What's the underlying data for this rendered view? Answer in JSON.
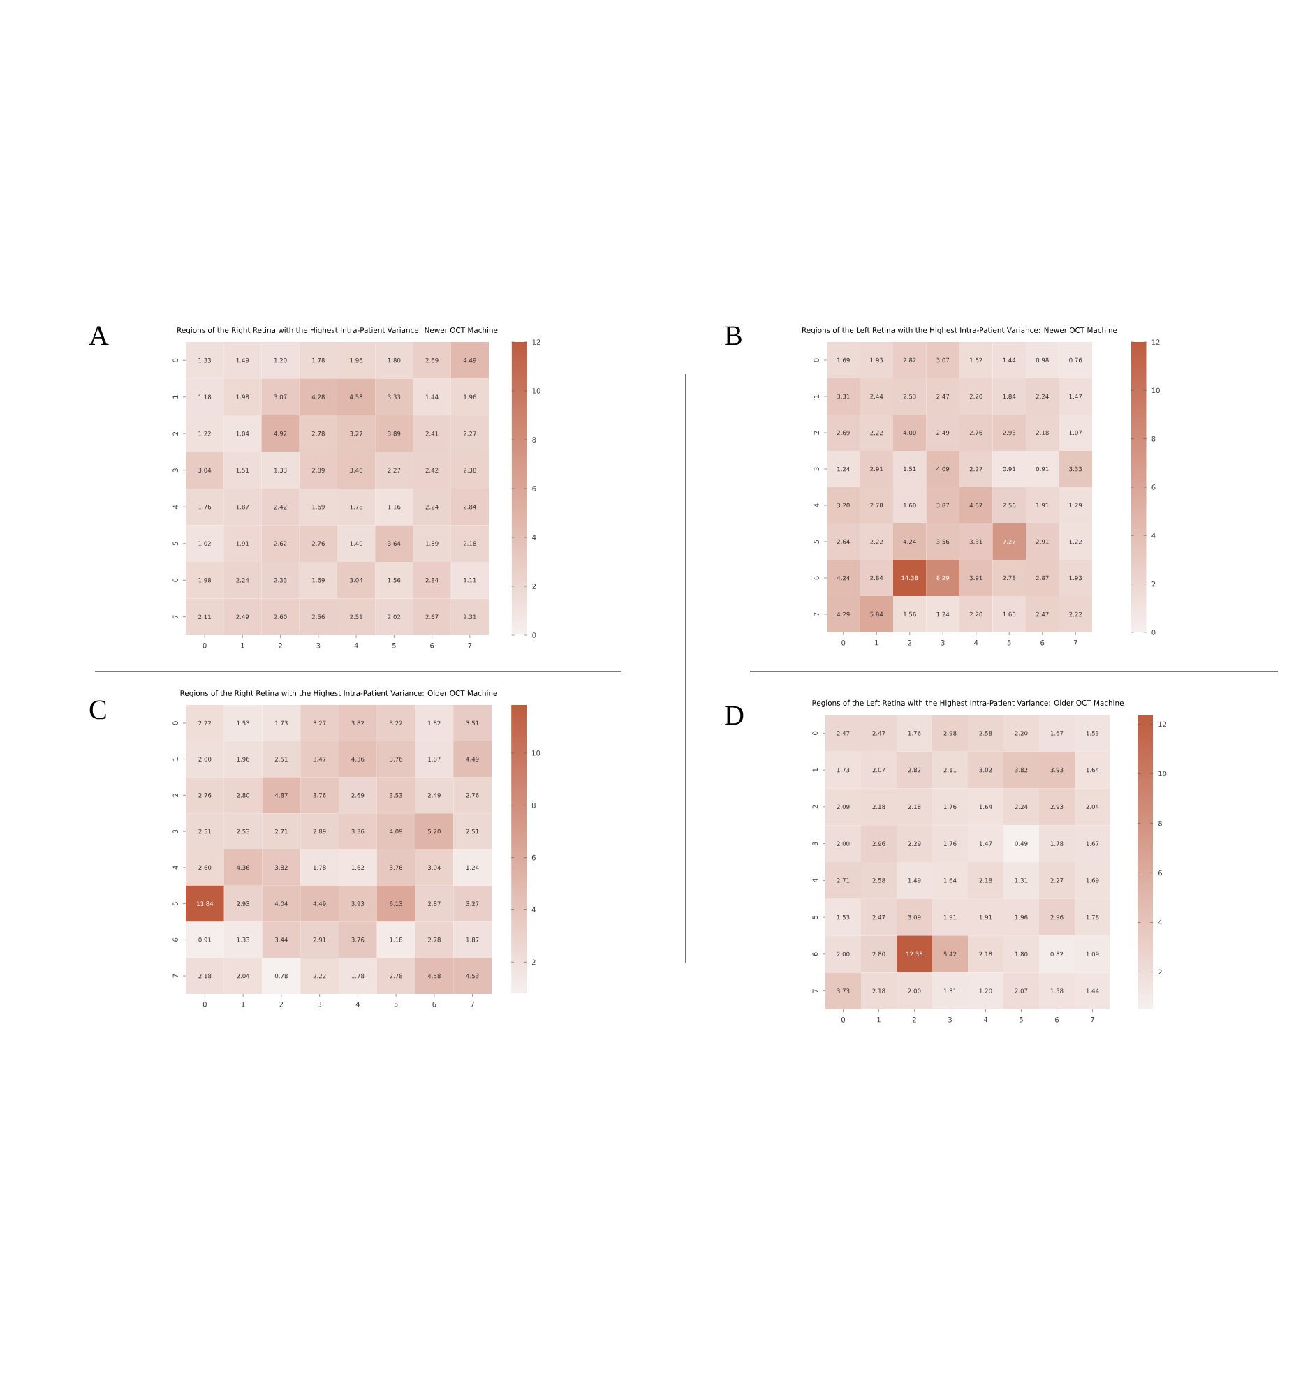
{
  "chart_data": [
    {
      "type": "heatmap",
      "title": "Regions of the Right Retina with the Highest Intra-Patient Variance: Newer OCT Machine",
      "annotations": [
        "A"
      ],
      "categories": [
        "0",
        "1",
        "2",
        "3",
        "4",
        "5",
        "6",
        "7"
      ],
      "y_categories": [
        "0",
        "1",
        "2",
        "3",
        "4",
        "5",
        "6",
        "7"
      ],
      "cells": [
        [
          1.33,
          1.49,
          1.2,
          1.78,
          1.96,
          1.8,
          2.69,
          4.49
        ],
        [
          1.18,
          1.98,
          3.07,
          4.28,
          4.58,
          3.33,
          1.44,
          1.96
        ],
        [
          1.22,
          1.04,
          4.92,
          2.78,
          3.27,
          3.89,
          2.41,
          2.27
        ],
        [
          3.04,
          1.51,
          1.33,
          2.89,
          3.4,
          2.27,
          2.42,
          2.38
        ],
        [
          1.76,
          1.87,
          2.42,
          1.69,
          1.78,
          1.16,
          2.24,
          2.84
        ],
        [
          1.02,
          1.91,
          2.62,
          2.76,
          1.4,
          3.64,
          1.89,
          2.18
        ],
        [
          1.98,
          2.24,
          2.33,
          1.69,
          3.04,
          1.56,
          2.84,
          1.11
        ],
        [
          2.11,
          2.49,
          2.6,
          2.56,
          2.51,
          2.02,
          2.67,
          2.31
        ]
      ],
      "cell_labels": [
        [
          "1.33",
          "1.49",
          "1.20",
          "1.78",
          "1.96",
          "1.80",
          "2.69",
          "4.49"
        ],
        [
          "1.18",
          "1.98",
          "3.07",
          "4.28",
          "4.58",
          "3.33",
          "1.44",
          "1.96"
        ],
        [
          "1.22",
          "1.04",
          "4.92",
          "2.78",
          "3.27",
          "3.89",
          "2.41",
          "2.27"
        ],
        [
          "3.04",
          "1.51",
          "1.33",
          "2.89",
          "3.40",
          "2.27",
          "2.42",
          "2.38"
        ],
        [
          "1.76",
          "1.87",
          "2.42",
          "1.69",
          "1.78",
          "1.16",
          "2.24",
          "2.84"
        ],
        [
          "1.02",
          "1.91",
          "2.62",
          "2.76",
          "1.40",
          "3.64",
          "1.89",
          "2.18"
        ],
        [
          "1.98",
          "2.24",
          "2.33",
          "1.69",
          "3.04",
          "1.56",
          "2.84",
          "1.11"
        ],
        [
          "2.11",
          "2.49",
          "2.60",
          "2.56",
          "2.51",
          "2.02",
          "2.67",
          "2.31"
        ]
      ],
      "clim": [
        0,
        12
      ],
      "cticks": [
        0,
        2,
        4,
        6,
        8,
        10,
        12
      ]
    },
    {
      "type": "heatmap",
      "title": "Regions of the Left Retina with the Highest Intra-Patient Variance: Newer OCT Machine",
      "annotations": [
        "B"
      ],
      "categories": [
        "0",
        "1",
        "2",
        "3",
        "4",
        "5",
        "6",
        "7"
      ],
      "y_categories": [
        "0",
        "1",
        "2",
        "3",
        "4",
        "5",
        "6",
        "7"
      ],
      "cells": [
        [
          1.69,
          1.93,
          2.82,
          3.07,
          1.62,
          1.44,
          0.98,
          0.76
        ],
        [
          3.31,
          2.44,
          2.53,
          2.47,
          2.2,
          1.84,
          2.24,
          1.47
        ],
        [
          2.69,
          2.22,
          4.0,
          2.49,
          2.76,
          2.93,
          2.18,
          1.07
        ],
        [
          1.24,
          2.91,
          1.51,
          4.09,
          2.27,
          0.91,
          0.91,
          3.33
        ],
        [
          3.2,
          2.78,
          1.6,
          3.87,
          4.67,
          2.56,
          1.91,
          1.29
        ],
        [
          2.64,
          2.22,
          4.24,
          3.56,
          3.31,
          7.27,
          2.91,
          1.22
        ],
        [
          4.24,
          2.84,
          14.38,
          8.29,
          3.91,
          2.78,
          2.87,
          1.93
        ],
        [
          4.29,
          5.84,
          1.56,
          1.24,
          2.2,
          1.6,
          2.47,
          2.22
        ]
      ],
      "cell_labels": [
        [
          "1.69",
          "1.93",
          "2.82",
          "3.07",
          "1.62",
          "1.44",
          "0.98",
          "0.76"
        ],
        [
          "3.31",
          "2.44",
          "2.53",
          "2.47",
          "2.20",
          "1.84",
          "2.24",
          "1.47"
        ],
        [
          "2.69",
          "2.22",
          "4.00",
          "2.49",
          "2.76",
          "2.93",
          "2.18",
          "1.07"
        ],
        [
          "1.24",
          "2.91",
          "1.51",
          "4.09",
          "2.27",
          "0.91",
          "0.91",
          "3.33"
        ],
        [
          "3.20",
          "2.78",
          "1.60",
          "3.87",
          "4.67",
          "2.56",
          "1.91",
          "1.29"
        ],
        [
          "2.64",
          "2.22",
          "4.24",
          "3.56",
          "3.31",
          "7.27",
          "2.91",
          "1.22"
        ],
        [
          "4.24",
          "2.84",
          "14.38",
          "8.29",
          "3.91",
          "2.78",
          "2.87",
          "1.93"
        ],
        [
          "4.29",
          "5.84",
          "1.56",
          "1.24",
          "2.20",
          "1.60",
          "2.47",
          "2.22"
        ]
      ],
      "clim": [
        0,
        12
      ],
      "cticks": [
        0,
        2,
        4,
        6,
        8,
        10,
        12
      ]
    },
    {
      "type": "heatmap",
      "title": "Regions of the Right Retina with the Highest Intra-Patient Variance: Older OCT Machine",
      "annotations": [
        "C"
      ],
      "categories": [
        "0",
        "1",
        "2",
        "3",
        "4",
        "5",
        "6",
        "7"
      ],
      "y_categories": [
        "0",
        "1",
        "2",
        "3",
        "4",
        "5",
        "6",
        "7"
      ],
      "cells": [
        [
          2.22,
          1.53,
          1.73,
          3.27,
          3.82,
          3.22,
          1.82,
          3.51
        ],
        [
          2.0,
          1.96,
          2.51,
          3.47,
          4.36,
          3.76,
          1.87,
          4.49
        ],
        [
          2.76,
          2.8,
          4.87,
          3.76,
          2.69,
          3.53,
          2.49,
          2.76
        ],
        [
          2.51,
          2.53,
          2.71,
          2.89,
          3.36,
          4.09,
          5.2,
          2.51
        ],
        [
          2.6,
          4.36,
          3.82,
          1.78,
          1.62,
          3.76,
          3.04,
          1.24
        ],
        [
          11.84,
          2.93,
          4.04,
          4.49,
          3.93,
          6.13,
          2.87,
          3.27
        ],
        [
          0.91,
          1.33,
          3.44,
          2.91,
          3.76,
          1.18,
          2.78,
          1.87
        ],
        [
          2.18,
          2.04,
          0.78,
          2.22,
          1.78,
          2.78,
          4.58,
          4.53
        ]
      ],
      "cell_labels": [
        [
          "2.22",
          "1.53",
          "1.73",
          "3.27",
          "3.82",
          "3.22",
          "1.82",
          "3.51"
        ],
        [
          "2.00",
          "1.96",
          "2.51",
          "3.47",
          "4.36",
          "3.76",
          "1.87",
          "4.49"
        ],
        [
          "2.76",
          "2.80",
          "4.87",
          "3.76",
          "2.69",
          "3.53",
          "2.49",
          "2.76"
        ],
        [
          "2.51",
          "2.53",
          "2.71",
          "2.89",
          "3.36",
          "4.09",
          "5.20",
          "2.51"
        ],
        [
          "2.60",
          "4.36",
          "3.82",
          "1.78",
          "1.62",
          "3.76",
          "3.04",
          "1.24"
        ],
        [
          "11.84",
          "2.93",
          "4.04",
          "4.49",
          "3.93",
          "6.13",
          "2.87",
          "3.27"
        ],
        [
          "0.91",
          "1.33",
          "3.44",
          "2.91",
          "3.76",
          "1.18",
          "2.78",
          "1.87"
        ],
        [
          "2.18",
          "2.04",
          "0.78",
          "2.22",
          "1.78",
          "2.78",
          "4.58",
          "4.53"
        ]
      ],
      "clim": [
        0.78,
        11.84
      ],
      "cticks": [
        2,
        4,
        6,
        8,
        10
      ]
    },
    {
      "type": "heatmap",
      "title": "Regions of the Left Retina with the Highest Intra-Patient Variance: Older OCT Machine",
      "annotations": [
        "D"
      ],
      "categories": [
        "0",
        "1",
        "2",
        "3",
        "4",
        "5",
        "6",
        "7"
      ],
      "y_categories": [
        "0",
        "1",
        "2",
        "3",
        "4",
        "5",
        "6",
        "7"
      ],
      "cells": [
        [
          2.47,
          2.47,
          1.76,
          2.98,
          2.58,
          2.2,
          1.67,
          1.53
        ],
        [
          1.73,
          2.07,
          2.82,
          2.11,
          3.02,
          3.82,
          3.93,
          1.64
        ],
        [
          2.09,
          2.18,
          2.18,
          1.76,
          1.64,
          2.24,
          2.93,
          2.04
        ],
        [
          2.0,
          2.96,
          2.29,
          1.76,
          1.47,
          0.49,
          1.78,
          1.67
        ],
        [
          2.71,
          2.58,
          1.49,
          1.64,
          2.18,
          1.31,
          2.27,
          1.69
        ],
        [
          1.53,
          2.47,
          3.09,
          1.91,
          1.91,
          1.96,
          2.96,
          1.78
        ],
        [
          2.0,
          2.8,
          12.38,
          5.42,
          2.18,
          1.8,
          0.82,
          1.09
        ],
        [
          3.73,
          2.18,
          2.0,
          1.31,
          1.2,
          2.07,
          1.58,
          1.44
        ]
      ],
      "cell_labels": [
        [
          "2.47",
          "2.47",
          "1.76",
          "2.98",
          "2.58",
          "2.20",
          "1.67",
          "1.53"
        ],
        [
          "1.73",
          "2.07",
          "2.82",
          "2.11",
          "3.02",
          "3.82",
          "3.93",
          "1.64"
        ],
        [
          "2.09",
          "2.18",
          "2.18",
          "1.76",
          "1.64",
          "2.24",
          "2.93",
          "2.04"
        ],
        [
          "2.00",
          "2.96",
          "2.29",
          "1.76",
          "1.47",
          "0.49",
          "1.78",
          "1.67"
        ],
        [
          "2.71",
          "2.58",
          "1.49",
          "1.64",
          "2.18",
          "1.31",
          "2.27",
          "1.69"
        ],
        [
          "1.53",
          "2.47",
          "3.09",
          "1.91",
          "1.91",
          "1.96",
          "2.96",
          "1.78"
        ],
        [
          "2.00",
          "2.80",
          "12.38",
          "5.42",
          "2.18",
          "1.80",
          "0.82",
          "1.09"
        ],
        [
          "3.73",
          "2.18",
          "2.00",
          "1.31",
          "1.20",
          "2.07",
          "1.58",
          "1.44"
        ]
      ],
      "clim": [
        0.49,
        12.38
      ],
      "cticks": [
        2,
        4,
        6,
        8,
        10,
        12
      ]
    }
  ]
}
